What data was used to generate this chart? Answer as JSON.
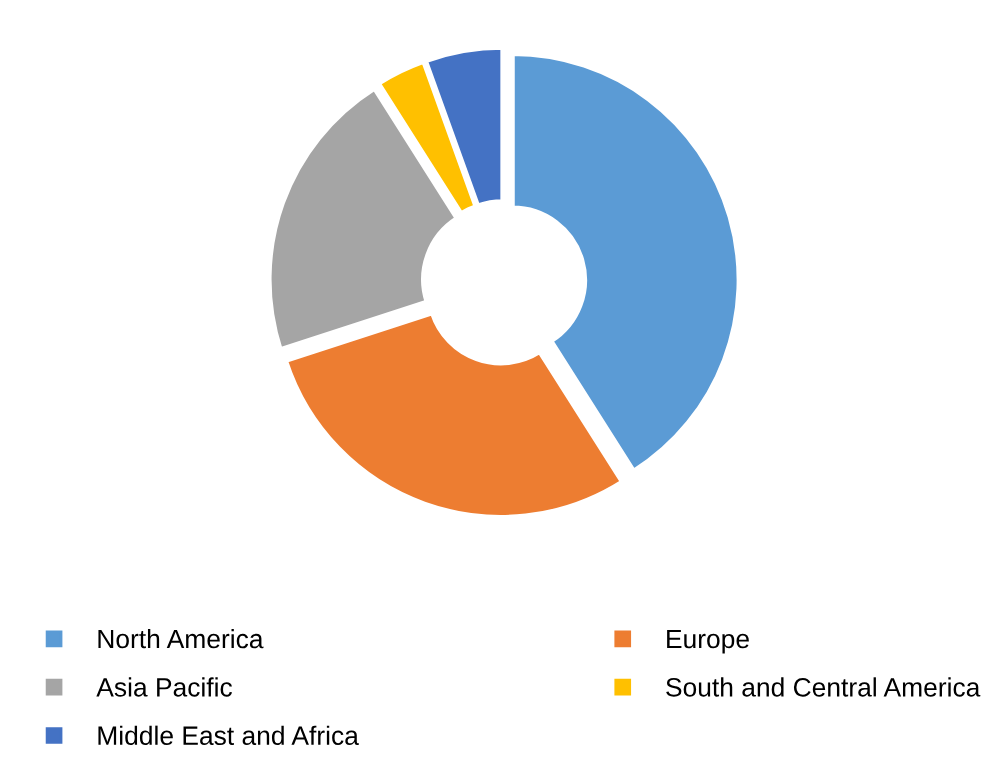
{
  "chart_data": {
    "type": "donut",
    "categories": [
      "North America",
      "Europe",
      "Asia Pacific",
      "South and Central America",
      "Middle East and Africa"
    ],
    "values": [
      41,
      29,
      21,
      3.5,
      5.5
    ],
    "colors": [
      "#5b9bd5",
      "#ed7d31",
      "#a5a5a5",
      "#ffc000",
      "#4472c4"
    ],
    "legend": "bottom"
  }
}
